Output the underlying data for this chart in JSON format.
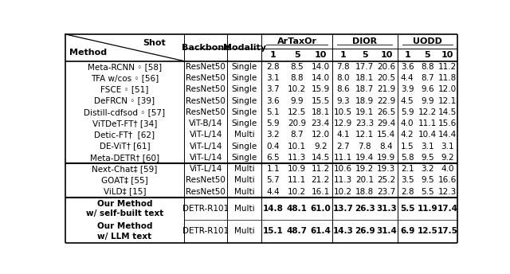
{
  "sections": [
    {
      "rows": [
        [
          "Meta-RCNN ◦ [58]",
          "ResNet50",
          "Single",
          "2.8",
          "8.5",
          "14.0",
          "7.8",
          "17.7",
          "20.6",
          "3.6",
          "8.8",
          "11.2"
        ],
        [
          "TFA w/cos ◦ [56]",
          "ResNet50",
          "Single",
          "3.1",
          "8.8",
          "14.0",
          "8.0",
          "18.1",
          "20.5",
          "4.4",
          "8.7",
          "11.8"
        ],
        [
          "FSCE ◦ [51]",
          "ResNet50",
          "Single",
          "3.7",
          "10.2",
          "15.9",
          "8.6",
          "18.7",
          "21.9",
          "3.9",
          "9.6",
          "12.0"
        ],
        [
          "DeFRCN ◦ [39]",
          "ResNet50",
          "Single",
          "3.6",
          "9.9",
          "15.5",
          "9.3",
          "18.9",
          "22.9",
          "4.5",
          "9.9",
          "12.1"
        ],
        [
          "Distill-cdfsod ◦ [57]",
          "ResNet50",
          "Single",
          "5.1",
          "12.5",
          "18.1",
          "10.5",
          "19.1",
          "26.5",
          "5.9",
          "12.2",
          "14.5"
        ],
        [
          "ViTDeT-FT† [34]",
          "ViT-B/14",
          "Single",
          "5.9",
          "20.9",
          "23.4",
          "12.9",
          "23.3",
          "29.4",
          "4.0",
          "11.1",
          "15.6"
        ],
        [
          "Detic-FT†  [62]",
          "ViT-L/14",
          "Multi",
          "3.2",
          "8.7",
          "12.0",
          "4.1",
          "12.1",
          "15.4",
          "4.2",
          "10.4",
          "14.4"
        ],
        [
          "DE-ViT† [61]",
          "ViT-L/14",
          "Single",
          "0.4",
          "10.1",
          "9.2",
          "2.7",
          "7.8",
          "8.4",
          "1.5",
          "3.1",
          "3.1"
        ],
        [
          "Meta-DETR† [60]",
          "ViT-L/14",
          "Single",
          "6.5",
          "11.3",
          "14.5",
          "11.1",
          "19.4",
          "19.9",
          "5.8",
          "9.5",
          "9.2"
        ]
      ]
    },
    {
      "rows": [
        [
          "Next-Chat‡ [59]",
          "ViT-L/14",
          "Multi",
          "1.1",
          "10.9",
          "11.2",
          "10.6",
          "19.2",
          "19.3",
          "2.1",
          "3.2",
          "4.0"
        ],
        [
          "GOAT‡ [55]",
          "ResNet50",
          "Multi",
          "5.7",
          "11.1",
          "21.2",
          "11.3",
          "20.1",
          "25.2",
          "3.5",
          "9.5",
          "16.6"
        ],
        [
          "ViLD‡ [15]",
          "ResNet50",
          "Multi",
          "4.4",
          "10.2",
          "16.1",
          "10.2",
          "18.8",
          "23.7",
          "2.8",
          "5.5",
          "12.3"
        ]
      ]
    },
    {
      "rows": [
        [
          "Our Method\nw/ self-built text",
          "DETR-R101",
          "Multi",
          "14.8",
          "48.1",
          "61.0",
          "13.7",
          "26.3",
          "31.3",
          "5.5",
          "11.9",
          "17.4"
        ],
        [
          "Our Method\nw/ LLM text",
          "DETR-R101",
          "Multi",
          "15.1",
          "48.7",
          "61.4",
          "14.3",
          "26.9",
          "31.4",
          "6.9",
          "12.5",
          "17.5"
        ]
      ]
    }
  ],
  "bg_color": "#ffffff",
  "text_color": "#000000",
  "line_color": "#000000",
  "header_bold": true,
  "group_headers": [
    "ArTaxOr",
    "DIOR",
    "UODD"
  ],
  "sub_headers": [
    "1",
    "5",
    "10"
  ],
  "col_headers": [
    "Backbone",
    "Modality"
  ]
}
